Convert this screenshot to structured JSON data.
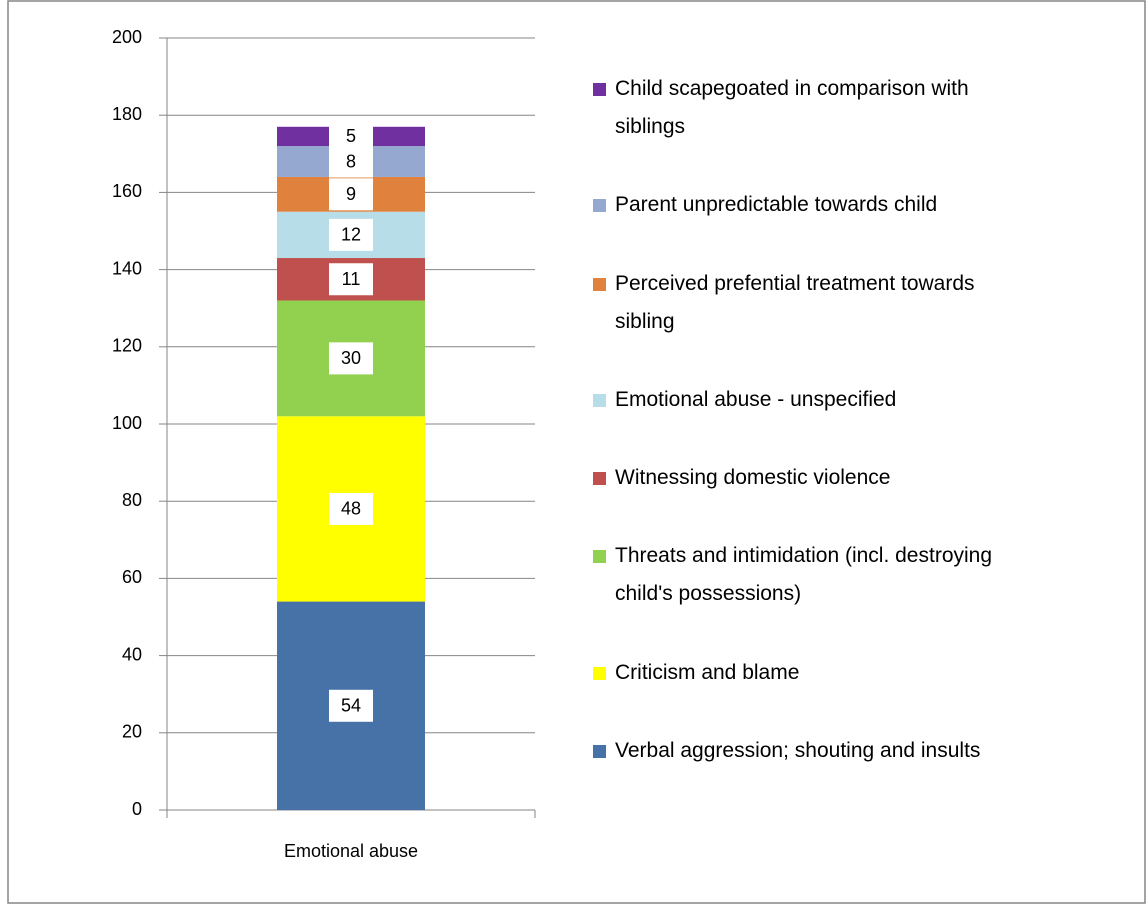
{
  "chart_data": {
    "type": "stacked_bar",
    "categories": [
      "Emotional abuse"
    ],
    "ylim": [
      0,
      200
    ],
    "yticks": [
      0,
      20,
      40,
      60,
      80,
      100,
      120,
      140,
      160,
      180,
      200
    ],
    "grid": true,
    "legend": "right",
    "series": [
      {
        "name": "Verbal aggression; shouting and insults",
        "color": "#4672a8",
        "values": [
          54
        ]
      },
      {
        "name": "Criticism and blame",
        "color": "#ffff00",
        "values": [
          48
        ]
      },
      {
        "name": "Threats and intimidation (incl. destroying child's possessions)",
        "color": "#92d050",
        "values": [
          30
        ]
      },
      {
        "name": "Witnessing domestic violence",
        "color": "#c0504d",
        "values": [
          11
        ]
      },
      {
        "name": "Emotional abuse - unspecified",
        "color": "#b7dde8",
        "values": [
          12
        ]
      },
      {
        "name": "Perceived prefential treatment towards sibling",
        "color": "#e0823e",
        "values": [
          9
        ]
      },
      {
        "name": "Parent unpredictable towards child",
        "color": "#95a9d0",
        "values": [
          8
        ]
      },
      {
        "name": "Child scapegoated in comparison with siblings",
        "color": "#7030a0",
        "values": [
          5
        ]
      }
    ]
  }
}
